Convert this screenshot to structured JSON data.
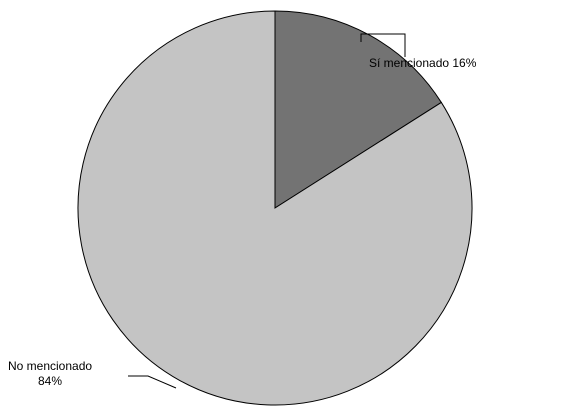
{
  "chart_data": {
    "type": "pie",
    "slices": [
      {
        "label": "Sí mencionado",
        "percent_label": "16%",
        "label_text": "Sí mencionado 16%",
        "value": 16,
        "color": "#737373"
      },
      {
        "label": "No mencionado",
        "percent_label": "84%",
        "label_line1": "No mencionado",
        "label_line2": "84%",
        "value": 84,
        "color": "#c4c4c4"
      }
    ],
    "start_angle_deg": 0,
    "direction": "clockwise",
    "slice_border_color": "#000000",
    "legend": "none"
  }
}
